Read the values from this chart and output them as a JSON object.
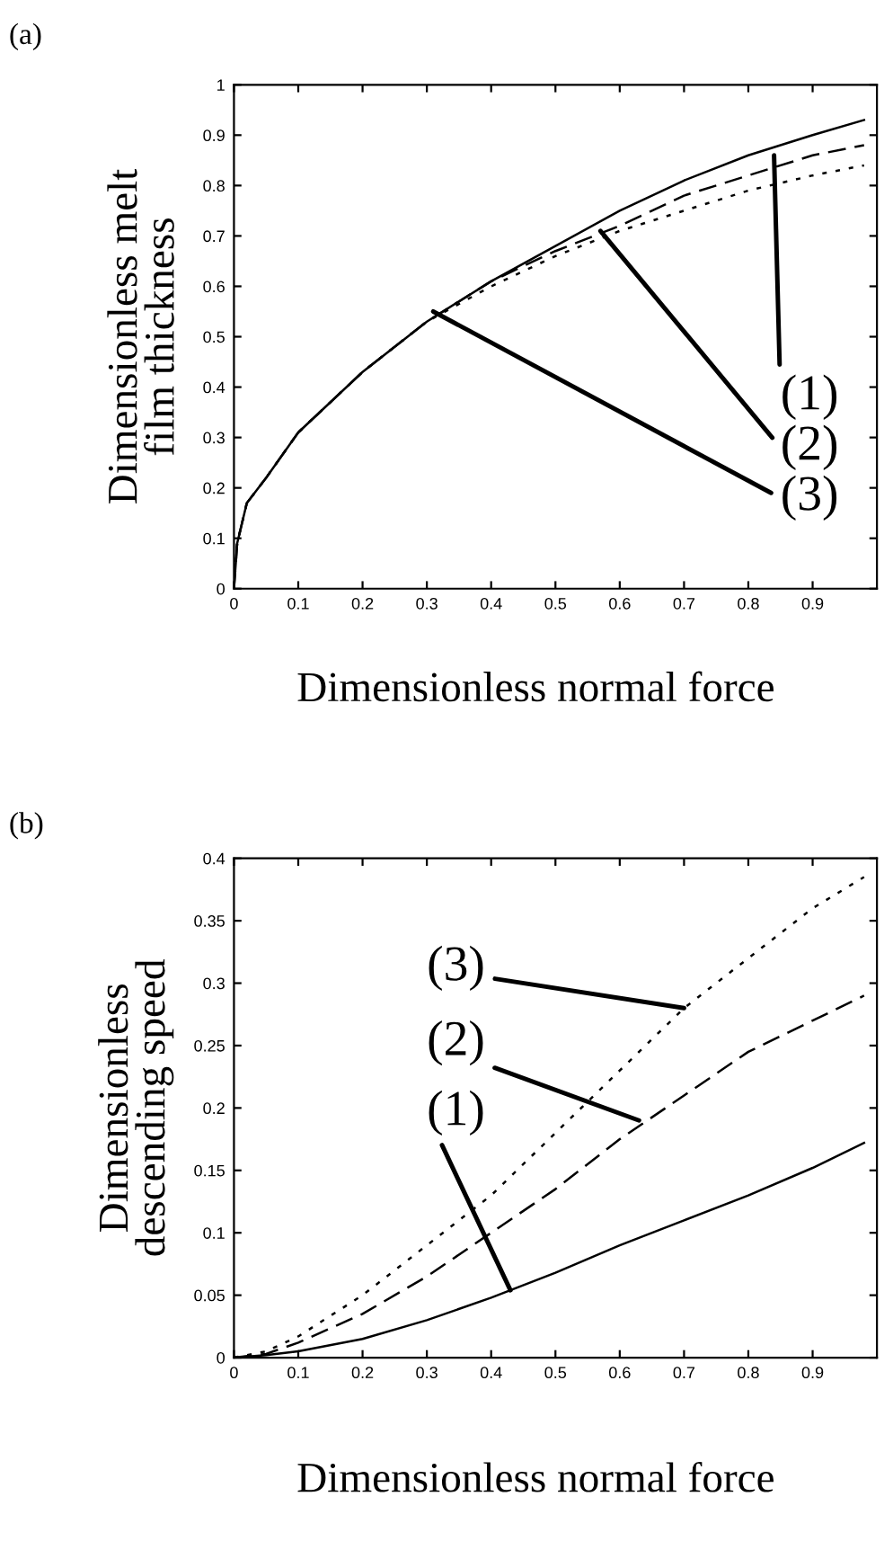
{
  "chart_data": [
    {
      "type": "line",
      "title": "(a)",
      "xlabel": "Dimensionless normal force",
      "ylabel": "Dimensionless melt\nfilm thickness",
      "xlim": [
        0,
        1
      ],
      "xticks": [
        0,
        0.1,
        0.2,
        0.3,
        0.4,
        0.5,
        0.6,
        0.7,
        0.8,
        0.9
      ],
      "ylim": [
        0,
        1
      ],
      "yticks": [
        0,
        0.1,
        0.2,
        0.3,
        0.4,
        0.5,
        0.6,
        0.7,
        0.8,
        0.9,
        1
      ],
      "grid": false,
      "legend": false,
      "series": [
        {
          "color": "#000000",
          "line_style": "solid",
          "x": [
            0,
            0.005,
            0.02,
            0.05,
            0.1,
            0.2,
            0.3,
            0.4,
            0.5,
            0.6,
            0.7,
            0.8,
            0.9,
            0.98
          ],
          "values": [
            0,
            0.09,
            0.17,
            0.22,
            0.31,
            0.43,
            0.53,
            0.61,
            0.68,
            0.75,
            0.81,
            0.86,
            0.9,
            0.93
          ]
        },
        {
          "color": "#000000",
          "line_style": "dashed",
          "x": [
            0,
            0.005,
            0.02,
            0.05,
            0.1,
            0.2,
            0.3,
            0.4,
            0.5,
            0.6,
            0.7,
            0.8,
            0.9,
            0.98
          ],
          "values": [
            0,
            0.09,
            0.17,
            0.22,
            0.31,
            0.43,
            0.53,
            0.61,
            0.67,
            0.72,
            0.78,
            0.82,
            0.86,
            0.88
          ]
        },
        {
          "color": "#000000",
          "line_style": "dotted",
          "x": [
            0,
            0.005,
            0.02,
            0.05,
            0.1,
            0.2,
            0.3,
            0.4,
            0.5,
            0.6,
            0.7,
            0.8,
            0.9,
            0.98
          ],
          "values": [
            0,
            0.09,
            0.17,
            0.22,
            0.31,
            0.43,
            0.53,
            0.6,
            0.66,
            0.71,
            0.75,
            0.79,
            0.82,
            0.84
          ]
        }
      ],
      "annotations": [
        {
          "text": "(1)",
          "x": 0.84,
          "y": 0.86
        },
        {
          "text": "(2)",
          "x": 0.57,
          "y": 0.71
        },
        {
          "text": "(3)",
          "x": 0.31,
          "y": 0.55
        }
      ]
    },
    {
      "type": "line",
      "title": "(b)",
      "xlabel": "Dimensionless normal force",
      "ylabel": "Dimensionless\ndescending speed",
      "xlim": [
        0,
        1
      ],
      "xticks": [
        0,
        0.1,
        0.2,
        0.3,
        0.4,
        0.5,
        0.6,
        0.7,
        0.8,
        0.9
      ],
      "ylim": [
        0,
        0.4
      ],
      "yticks": [
        0,
        0.05,
        0.1,
        0.15,
        0.2,
        0.25,
        0.3,
        0.35,
        0.4
      ],
      "grid": false,
      "legend": false,
      "series": [
        {
          "color": "#000000",
          "line_style": "solid",
          "x": [
            0,
            0.05,
            0.1,
            0.2,
            0.3,
            0.4,
            0.5,
            0.6,
            0.7,
            0.8,
            0.9,
            0.98
          ],
          "values": [
            0,
            0.002,
            0.005,
            0.015,
            0.03,
            0.048,
            0.068,
            0.09,
            0.11,
            0.13,
            0.152,
            0.172
          ]
        },
        {
          "color": "#000000",
          "line_style": "dashed",
          "x": [
            0,
            0.05,
            0.1,
            0.2,
            0.3,
            0.4,
            0.5,
            0.6,
            0.7,
            0.8,
            0.9,
            0.98
          ],
          "values": [
            0,
            0.003,
            0.012,
            0.035,
            0.065,
            0.1,
            0.135,
            0.175,
            0.21,
            0.245,
            0.27,
            0.29
          ]
        },
        {
          "color": "#000000",
          "line_style": "dotted",
          "x": [
            0,
            0.05,
            0.1,
            0.2,
            0.3,
            0.4,
            0.5,
            0.6,
            0.7,
            0.8,
            0.9,
            0.98
          ],
          "values": [
            0,
            0.005,
            0.017,
            0.05,
            0.09,
            0.13,
            0.18,
            0.23,
            0.28,
            0.32,
            0.36,
            0.385
          ]
        }
      ],
      "annotations": [
        {
          "text": "(3)",
          "x": 0.7,
          "y": 0.28
        },
        {
          "text": "(2)",
          "x": 0.63,
          "y": 0.19
        },
        {
          "text": "(1)",
          "x": 0.43,
          "y": 0.054
        }
      ]
    }
  ]
}
